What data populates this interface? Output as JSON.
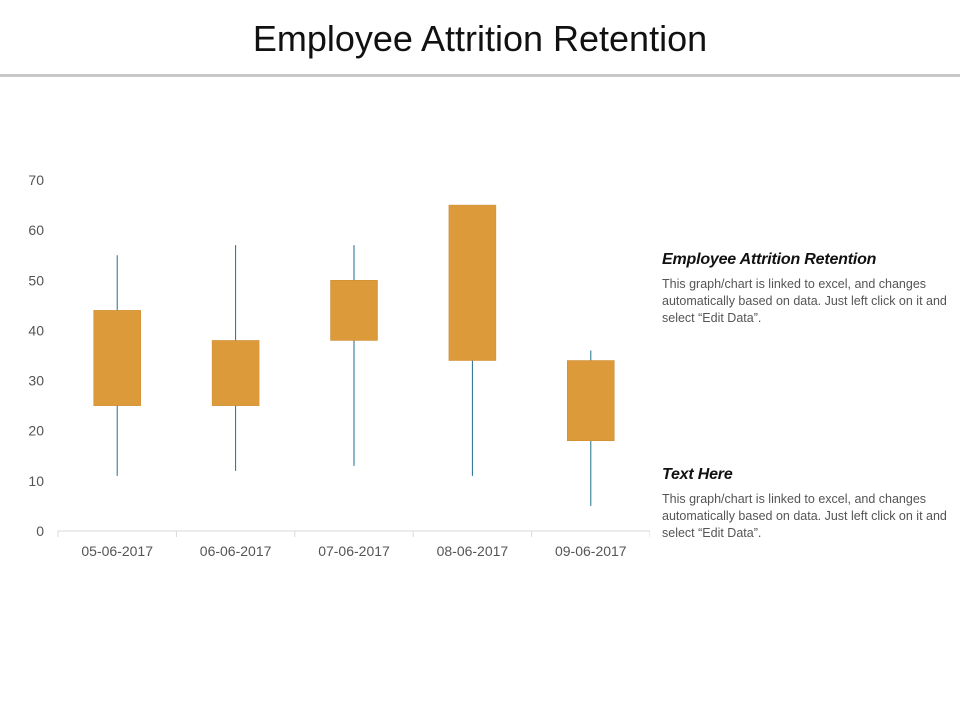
{
  "page": {
    "title": "Employee Attrition Retention"
  },
  "panel": {
    "blocks": [
      {
        "heading": "Employee Attrition Retention",
        "body": "This graph/chart is linked to excel, and changes automatically based on data. Just left click on it and select “Edit Data”."
      },
      {
        "heading": "Text Here",
        "body": "This graph/chart is linked to excel, and changes automatically based on data. Just left click on it and select “Edit Data”."
      }
    ]
  },
  "chart_data": {
    "type": "candlestick",
    "title": "",
    "xlabel": "",
    "ylabel": "",
    "ylim": [
      0,
      70
    ],
    "yticks": [
      0,
      10,
      20,
      30,
      40,
      50,
      60,
      70
    ],
    "grid": false,
    "categories": [
      "05-06-2017",
      "06-06-2017",
      "07-06-2017",
      "08-06-2017",
      "09-06-2017"
    ],
    "series": [
      {
        "high": [
          55,
          57,
          57,
          65,
          36
        ],
        "low": [
          11,
          12,
          13,
          11,
          5
        ],
        "open": [
          25,
          25,
          38,
          34,
          18
        ],
        "close": [
          44,
          38,
          50,
          65,
          34
        ]
      }
    ],
    "colors": {
      "box": "#DD9A3A",
      "wick": "#1F6E8C",
      "axis": "#d9d9d9"
    }
  }
}
